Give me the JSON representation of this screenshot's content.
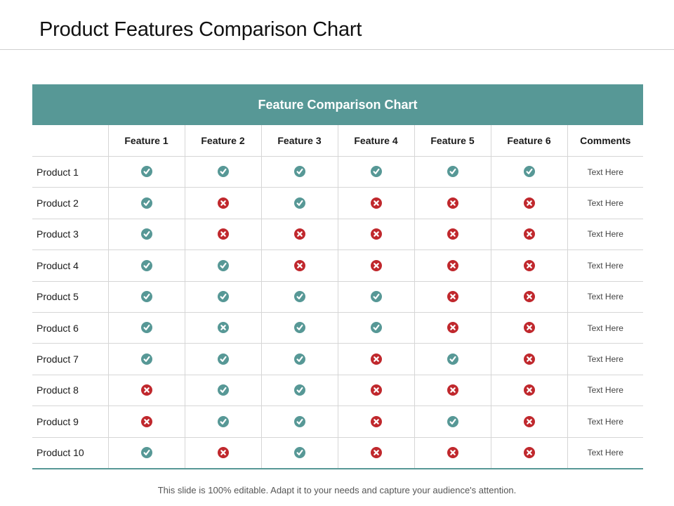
{
  "header": {
    "title": "Product Features Comparison Chart"
  },
  "table": {
    "banner": "Feature Comparison Chart",
    "columns": [
      "",
      "Feature 1",
      "Feature 2",
      "Feature 3",
      "Feature 4",
      "Feature 5",
      "Feature 6",
      "Comments"
    ],
    "rows": [
      {
        "product": "Product 1",
        "marks": [
          1,
          1,
          1,
          1,
          1,
          1
        ],
        "comment": "Text Here"
      },
      {
        "product": "Product 2",
        "marks": [
          1,
          0,
          1,
          0,
          0,
          0
        ],
        "comment": "Text Here"
      },
      {
        "product": "Product 3",
        "marks": [
          1,
          0,
          0,
          0,
          0,
          0
        ],
        "comment": "Text Here"
      },
      {
        "product": "Product 4",
        "marks": [
          1,
          1,
          0,
          0,
          0,
          0
        ],
        "comment": "Text Here"
      },
      {
        "product": "Product 5",
        "marks": [
          1,
          1,
          1,
          1,
          0,
          0
        ],
        "comment": "Text Here"
      },
      {
        "product": "Product 6",
        "marks": [
          1,
          2,
          1,
          1,
          0,
          0
        ],
        "comment": "Text Here"
      },
      {
        "product": "Product 7",
        "marks": [
          1,
          1,
          1,
          0,
          1,
          0
        ],
        "comment": "Text Here"
      },
      {
        "product": "Product 8",
        "marks": [
          0,
          1,
          1,
          0,
          0,
          0
        ],
        "comment": "Text Here"
      },
      {
        "product": "Product 9",
        "marks": [
          0,
          1,
          1,
          0,
          1,
          0
        ],
        "comment": "Text Here"
      },
      {
        "product": "Product 10",
        "marks": [
          1,
          0,
          1,
          0,
          0,
          0
        ],
        "comment": "Text Here"
      }
    ],
    "mark_legend": {
      "1": "check-icon",
      "0": "cross-icon",
      "2": "cross-icon-teal"
    },
    "colors": {
      "check": "#579896",
      "cross": "#c0282d",
      "banner": "#579896"
    }
  },
  "footer": {
    "note": "This slide is 100% editable. Adapt it to your needs and capture your audience's attention."
  }
}
